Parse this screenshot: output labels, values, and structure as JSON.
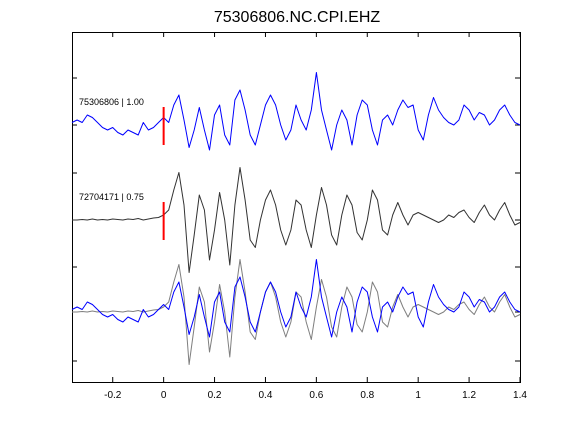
{
  "title": "75306806.NC.CPI.EHZ",
  "chart_data": {
    "type": "line",
    "title": "75306806.NC.CPI.EHZ",
    "xlabel": "",
    "ylabel": "",
    "xlim": [
      -0.36,
      1.4
    ],
    "xticks": [
      -0.2,
      0,
      0.2,
      0.4,
      0.6,
      0.8,
      1,
      1.2,
      1.4
    ],
    "xtick_labels": [
      "-0.2",
      "0",
      "0.2",
      "0.4",
      "0.6",
      "0.8",
      "1",
      "1.2",
      "1.4"
    ],
    "pick_time": 0,
    "colors": {
      "master": "#0000ff",
      "correlated": "#333333",
      "overlay": "#7f7f7f",
      "pick": "#ff0000"
    },
    "series": [
      {
        "label": "75306806 | 1.00",
        "row": 1,
        "color": "#0000ff",
        "x": [
          -0.36,
          -0.34,
          -0.32,
          -0.3,
          -0.28,
          -0.26,
          -0.24,
          -0.22,
          -0.2,
          -0.18,
          -0.16,
          -0.14,
          -0.12,
          -0.1,
          -0.08,
          -0.06,
          -0.04,
          -0.02,
          0,
          0.02,
          0.04,
          0.06,
          0.08,
          0.1,
          0.12,
          0.14,
          0.16,
          0.18,
          0.2,
          0.22,
          0.24,
          0.26,
          0.28,
          0.3,
          0.32,
          0.34,
          0.36,
          0.38,
          0.4,
          0.42,
          0.44,
          0.46,
          0.48,
          0.5,
          0.52,
          0.54,
          0.56,
          0.58,
          0.6,
          0.62,
          0.64,
          0.66,
          0.68,
          0.7,
          0.72,
          0.74,
          0.76,
          0.78,
          0.8,
          0.82,
          0.84,
          0.86,
          0.88,
          0.9,
          0.92,
          0.94,
          0.96,
          0.98,
          1,
          1.02,
          1.04,
          1.06,
          1.08,
          1.1,
          1.12,
          1.14,
          1.16,
          1.18,
          1.2,
          1.22,
          1.24,
          1.26,
          1.28,
          1.3,
          1.32,
          1.34,
          1.36,
          1.38,
          1.4
        ],
        "y": [
          0.05,
          0.1,
          0.05,
          0.2,
          0.15,
          0.05,
          -0.05,
          -0.1,
          -0.05,
          -0.15,
          -0.2,
          -0.1,
          -0.15,
          -0.2,
          0.05,
          -0.1,
          -0.05,
          0.05,
          0.15,
          0.05,
          0.4,
          0.6,
          0.1,
          -0.45,
          -0.1,
          0.35,
          -0.1,
          -0.5,
          0.2,
          0.4,
          -0.2,
          -0.4,
          0.5,
          0.7,
          0.3,
          -0.2,
          -0.4,
          0.0,
          0.4,
          0.6,
          0.4,
          0.0,
          -0.3,
          -0.1,
          0.4,
          0.1,
          -0.1,
          0.3,
          1.05,
          0.3,
          -0.1,
          -0.5,
          0.0,
          0.3,
          0.1,
          -0.4,
          0.2,
          0.5,
          0.4,
          -0.1,
          -0.4,
          0.1,
          0.2,
          0.0,
          0.3,
          0.5,
          0.35,
          0.4,
          -0.1,
          -0.3,
          0.2,
          0.55,
          0.3,
          0.15,
          0.05,
          0.0,
          0.1,
          0.4,
          0.3,
          0.1,
          0.25,
          0.2,
          0.0,
          0.1,
          0.3,
          0.4,
          0.2,
          0.05,
          0.0
        ]
      },
      {
        "label": "72704171 | 0.75",
        "row": 2,
        "color": "#333333",
        "x": [
          -0.36,
          -0.34,
          -0.32,
          -0.3,
          -0.28,
          -0.26,
          -0.24,
          -0.22,
          -0.2,
          -0.18,
          -0.16,
          -0.14,
          -0.12,
          -0.1,
          -0.08,
          -0.06,
          -0.04,
          -0.02,
          0,
          0.02,
          0.04,
          0.06,
          0.08,
          0.1,
          0.12,
          0.14,
          0.16,
          0.18,
          0.2,
          0.22,
          0.24,
          0.26,
          0.28,
          0.3,
          0.32,
          0.34,
          0.36,
          0.38,
          0.4,
          0.42,
          0.44,
          0.46,
          0.48,
          0.5,
          0.52,
          0.54,
          0.56,
          0.58,
          0.6,
          0.62,
          0.64,
          0.66,
          0.68,
          0.7,
          0.72,
          0.74,
          0.76,
          0.78,
          0.8,
          0.82,
          0.84,
          0.86,
          0.88,
          0.9,
          0.92,
          0.94,
          0.96,
          0.98,
          1,
          1.02,
          1.04,
          1.06,
          1.08,
          1.1,
          1.12,
          1.14,
          1.16,
          1.18,
          1.2,
          1.22,
          1.24,
          1.26,
          1.28,
          1.3,
          1.32,
          1.34,
          1.36,
          1.38,
          1.4
        ],
        "y": [
          0.0,
          0.0,
          0.01,
          0.0,
          0.02,
          0.0,
          0.01,
          0.0,
          0.02,
          0.01,
          0.0,
          0.02,
          0.01,
          0.03,
          0.0,
          0.02,
          0.04,
          0.05,
          0.1,
          0.2,
          0.6,
          0.95,
          0.3,
          -1.05,
          -0.3,
          0.5,
          0.2,
          -0.8,
          -0.2,
          0.55,
          0.0,
          -0.9,
          0.3,
          1.05,
          0.4,
          -0.4,
          -0.55,
          0.0,
          0.4,
          0.6,
          0.3,
          -0.2,
          -0.5,
          -0.2,
          0.4,
          0.3,
          -0.2,
          -0.55,
          0.1,
          0.65,
          0.3,
          -0.3,
          -0.5,
          0.1,
          0.5,
          0.3,
          -0.25,
          -0.4,
          0.0,
          0.6,
          0.4,
          -0.2,
          -0.3,
          0.1,
          0.35,
          0.1,
          -0.1,
          0.1,
          0.15,
          0.1,
          0.05,
          0.0,
          -0.05,
          0.0,
          0.1,
          0.05,
          0.15,
          0.2,
          0.05,
          -0.05,
          0.15,
          0.3,
          0.1,
          0.0,
          0.2,
          0.35,
          0.1,
          -0.1,
          -0.05
        ]
      }
    ],
    "overlay_row": 3
  }
}
